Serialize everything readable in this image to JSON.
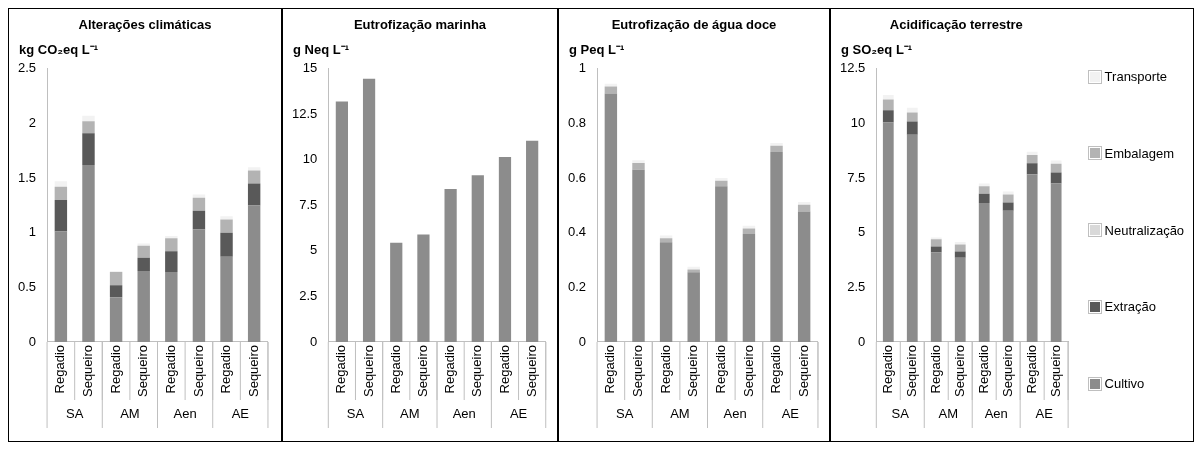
{
  "chart_data": [
    {
      "type": "bar",
      "stacked": true,
      "title": "Alterações climáticas",
      "ylabel": "kg CO₂eq L⁻¹",
      "categories": [
        "Regadio",
        "Sequeiro",
        "Regadio",
        "Sequeiro",
        "Regadio",
        "Sequeiro",
        "Regadio",
        "Sequeiro"
      ],
      "annotations": [
        "SA",
        "AM",
        "Aen",
        "AE"
      ],
      "ylim": [
        0,
        2.5
      ],
      "yticks": [
        0,
        0.5,
        1,
        1.5,
        2,
        2.5
      ],
      "grid": false,
      "legend": false,
      "series": [
        {
          "color": "#8c8c8c",
          "values": [
            1.01,
            1.62,
            0.41,
            0.65,
            0.64,
            1.03,
            0.78,
            1.25
          ]
        },
        {
          "color": "#595959",
          "values": [
            0.29,
            0.29,
            0.11,
            0.12,
            0.19,
            0.17,
            0.22,
            0.2
          ]
        },
        {
          "color": "#d9d9d9",
          "values": [
            0,
            0,
            0,
            0,
            0,
            0,
            0,
            0
          ]
        },
        {
          "color": "#b3b3b3",
          "values": [
            0.12,
            0.11,
            0.12,
            0.11,
            0.12,
            0.12,
            0.12,
            0.12
          ]
        },
        {
          "color": "#f2f2f2",
          "values": [
            0.05,
            0.05,
            0.01,
            0.02,
            0.02,
            0.03,
            0.03,
            0.03
          ]
        }
      ]
    },
    {
      "type": "bar",
      "stacked": true,
      "title": "Eutrofização marinha",
      "ylabel": "g Neq L⁻¹",
      "categories": [
        "Regadio",
        "Sequeiro",
        "Regadio",
        "Sequeiro",
        "Regadio",
        "Sequeiro",
        "Regadio",
        "Sequeiro"
      ],
      "annotations": [
        "SA",
        "AM",
        "Aen",
        "AE"
      ],
      "ylim": [
        0,
        15
      ],
      "yticks": [
        0,
        2.5,
        5,
        7.5,
        10,
        12.5,
        15
      ],
      "grid": false,
      "legend": false,
      "series": [
        {
          "color": "#8c8c8c",
          "values": [
            13.2,
            14.45,
            5.45,
            5.9,
            8.4,
            9.15,
            10.15,
            11.05
          ]
        }
      ]
    },
    {
      "type": "bar",
      "stacked": true,
      "title": "Eutrofização de água doce",
      "ylabel": "g Peq L⁻¹",
      "categories": [
        "Regadio",
        "Sequeiro",
        "Regadio",
        "Sequeiro",
        "Regadio",
        "Sequeiro",
        "Regadio",
        "Sequeiro"
      ],
      "annotations": [
        "SA",
        "AM",
        "Aen",
        "AE"
      ],
      "ylim": [
        0,
        1
      ],
      "yticks": [
        0,
        0.2,
        0.4,
        0.6,
        0.8,
        1
      ],
      "grid": false,
      "legend": false,
      "series": [
        {
          "color": "#8c8c8c",
          "values": [
            0.91,
            0.63,
            0.365,
            0.255,
            0.57,
            0.395,
            0.695,
            0.478
          ]
        },
        {
          "color": "#b3b3b3",
          "values": [
            0.025,
            0.025,
            0.015,
            0.01,
            0.02,
            0.02,
            0.023,
            0.024
          ]
        },
        {
          "color": "#f2f2f2",
          "values": [
            0.01,
            0.01,
            0.01,
            0.01,
            0.01,
            0.01,
            0.01,
            0.01
          ]
        }
      ]
    },
    {
      "type": "bar",
      "stacked": true,
      "title": "Acidificação terrestre",
      "ylabel": "g SO₂eq L⁻¹",
      "categories": [
        "Regadio",
        "Sequeiro",
        "Regadio",
        "Sequeiro",
        "Regadio",
        "Sequeiro",
        "Regadio",
        "Sequeiro"
      ],
      "annotations": [
        "SA",
        "AM",
        "Aen",
        "AE"
      ],
      "ylim": [
        0,
        12.5
      ],
      "yticks": [
        0,
        2.5,
        5,
        7.5,
        10,
        12.5
      ],
      "grid": false,
      "legend": "right",
      "series": [
        {
          "name": "Cultivo",
          "color": "#8c8c8c",
          "values": [
            10.04,
            9.48,
            4.09,
            3.85,
            6.36,
            6.0,
            7.68,
            7.25
          ]
        },
        {
          "name": "Extração",
          "color": "#595959",
          "values": [
            0.56,
            0.61,
            0.28,
            0.29,
            0.42,
            0.38,
            0.5,
            0.5
          ]
        },
        {
          "name": "Neutralização",
          "color": "#d9d9d9",
          "values": [
            0,
            0,
            0,
            0,
            0,
            0,
            0,
            0
          ]
        },
        {
          "name": "Embalagem",
          "color": "#b3b3b3",
          "values": [
            0.5,
            0.41,
            0.33,
            0.32,
            0.34,
            0.37,
            0.37,
            0.4
          ]
        },
        {
          "name": "Transporte",
          "color": "#f2f2f2",
          "values": [
            0.2,
            0.22,
            0.08,
            0.11,
            0.13,
            0.13,
            0.15,
            0.15
          ]
        }
      ]
    }
  ]
}
